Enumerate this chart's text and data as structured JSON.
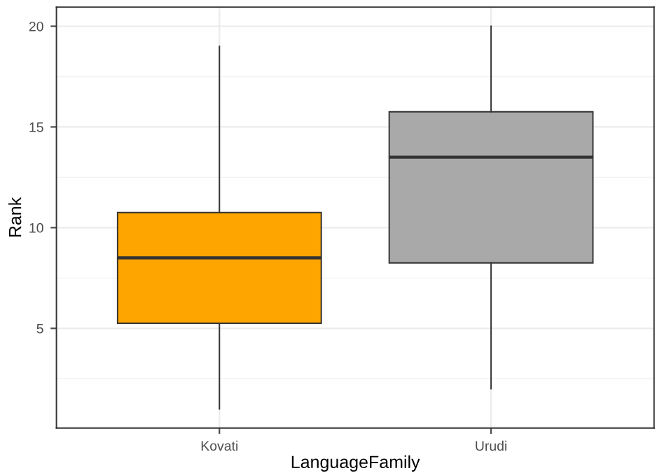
{
  "chart_data": {
    "type": "box",
    "xlabel": "LanguageFamily",
    "ylabel": "Rank",
    "categories": [
      "Kovati",
      "Urudi"
    ],
    "boxes": [
      {
        "low": 1,
        "q1": 5.25,
        "median": 8.5,
        "q3": 10.75,
        "high": 19
      },
      {
        "low": 2,
        "q1": 8.25,
        "median": 13.5,
        "q3": 15.75,
        "high": 20
      }
    ],
    "colors": [
      "#ffa500",
      "#a9a9a9"
    ],
    "ylim": [
      0.05,
      20.95
    ],
    "yticks": [
      5,
      10,
      15,
      20
    ],
    "grid": true
  }
}
